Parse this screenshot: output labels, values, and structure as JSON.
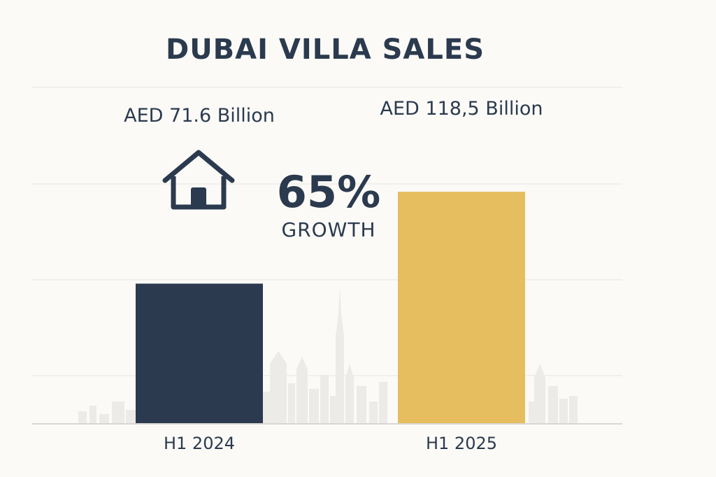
{
  "colors": {
    "background": "#fbfaf7",
    "bar_2024": "#2b3a4e",
    "bar_2025": "#e6bd5f",
    "text": "#2b3a4e",
    "grid": "#e8e6e1",
    "skyline": "#e9e8e5"
  },
  "icons": {
    "house": "house-icon"
  },
  "annotation": {
    "percent": "65%",
    "word": "GROWTH"
  },
  "chart_data": {
    "type": "bar",
    "title": "DUBAI VILLA SALES",
    "categories": [
      "H1 2024",
      "H1 2025"
    ],
    "values": [
      71.6,
      118.5
    ],
    "value_labels": [
      "AED 71.6 Billion",
      "AED 118,5 Billion"
    ],
    "unit": "AED Billion",
    "xlabel": "",
    "ylabel": "",
    "ylim": [
      0,
      150
    ],
    "grid": true,
    "legend": "none"
  }
}
